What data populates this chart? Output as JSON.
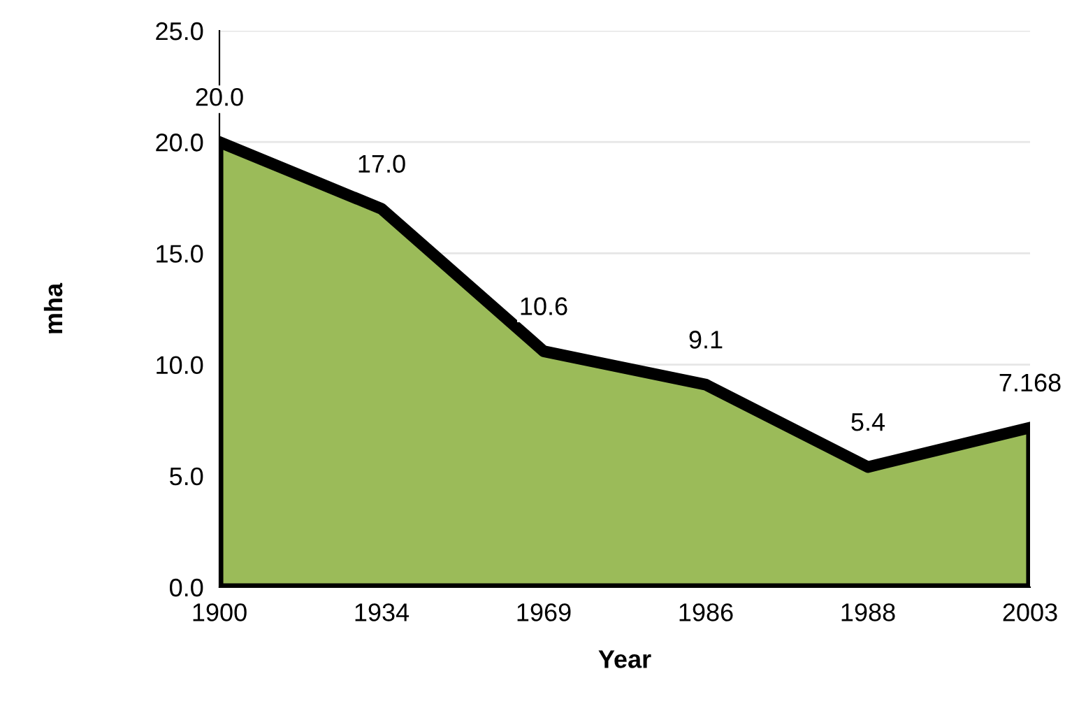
{
  "chart_data": {
    "type": "area",
    "xlabel": "Year",
    "ylabel": "mha",
    "categories": [
      "1900",
      "1934",
      "1969",
      "1986",
      "1988",
      "2003"
    ],
    "values": [
      20.0,
      17.0,
      10.6,
      9.1,
      5.4,
      7.168
    ],
    "value_labels": [
      "20.0",
      "17.0",
      "10.6",
      "9.1",
      "5.4",
      "7.168"
    ],
    "color": "#9bbb59",
    "ylim": [
      0,
      25
    ],
    "yticks": [
      {
        "value": 0,
        "label": "0.0"
      },
      {
        "value": 5,
        "label": "5.0"
      },
      {
        "value": 10,
        "label": "10.0"
      },
      {
        "value": 15,
        "label": "15.0"
      },
      {
        "value": 20,
        "label": "20.0"
      },
      {
        "value": 25,
        "label": "25.0"
      }
    ],
    "grid": "y"
  }
}
